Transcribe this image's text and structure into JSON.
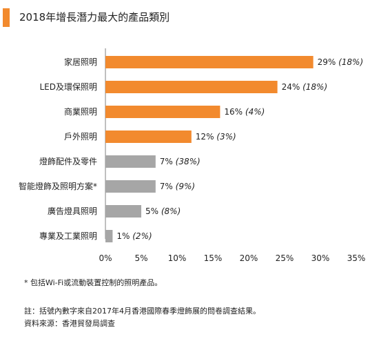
{
  "header": {
    "accent_color": "#f28a2e",
    "title": "2018年增長潛力最大的產品類別"
  },
  "chart_data": {
    "type": "bar",
    "orientation": "horizontal",
    "title": "2018年增長潛力最大的產品類別",
    "categories": [
      "家居照明",
      "LED及環保照明",
      "商業照明",
      "戶外照明",
      "燈飾配件及零件",
      "智能燈飾及照明方案*",
      "廣告燈具照明",
      "專業及工業照明"
    ],
    "values": [
      29,
      24,
      16,
      12,
      7,
      7,
      5,
      1
    ],
    "previous_values": [
      18,
      18,
      4,
      3,
      38,
      9,
      8,
      2
    ],
    "value_labels": [
      "29%",
      "24%",
      "16%",
      "12%",
      "7%",
      "7%",
      "5%",
      "1%"
    ],
    "previous_labels": [
      "(18%)",
      "(18%)",
      "(4%)",
      "(3%)",
      "(38%)",
      "(9%)",
      "(8%)",
      "(2%)"
    ],
    "bar_colors": [
      "#f28a2e",
      "#f28a2e",
      "#f28a2e",
      "#f28a2e",
      "#a6a6a6",
      "#a6a6a6",
      "#a6a6a6",
      "#a6a6a6"
    ],
    "xlim": [
      0,
      35
    ],
    "xticks": [
      "0%",
      "5%",
      "10%",
      "15%",
      "20%",
      "25%",
      "30%",
      "35%"
    ],
    "xlabel": "",
    "ylabel": "",
    "grid": false
  },
  "footnotes": {
    "note1": "* 包括Wi-Fi或流動裝置控制的照明產品。",
    "note2": "註：括號內數字來自2017年4月香港國際春季燈飾展的問卷調查結果。",
    "source": "資料來源：香港貿發局調查"
  }
}
